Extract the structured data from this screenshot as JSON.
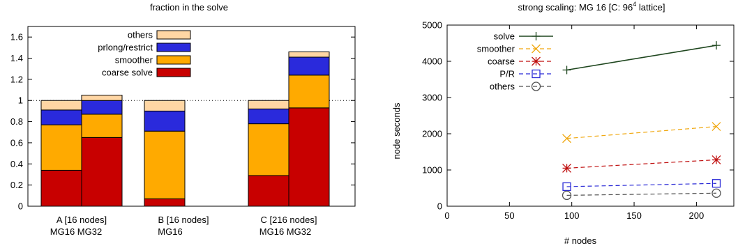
{
  "chart_data": [
    {
      "type": "bar",
      "subtype": "stacked",
      "title": "fraction in the solve",
      "xlabel": "",
      "ylabel": "",
      "ylim": [
        0,
        1.7
      ],
      "yticks": [
        "0",
        "0.2",
        "0.4",
        "0.6",
        "0.8",
        "1",
        "1.2",
        "1.4",
        "1.6"
      ],
      "reference_line": 1,
      "legend_position": "top-left",
      "stack_order": [
        "coarse solve",
        "smoother",
        "prlong/restrict",
        "others"
      ],
      "legend_order": [
        "others",
        "prlong/restrict",
        "smoother",
        "coarse solve"
      ],
      "colors": {
        "coarse solve": "#c80000",
        "smoother": "#ffaa00",
        "prlong/restrict": "#2a2adc",
        "others": "#ffd6a4"
      },
      "groups": [
        {
          "label": "A [16 nodes]",
          "bar_labels": "MG16 MG32"
        },
        {
          "label": "B [16 nodes]",
          "bar_labels": "MG16"
        },
        {
          "label": "C [216 nodes]",
          "bar_labels": "MG16 MG32"
        }
      ],
      "bars": [
        {
          "group": "A [16 nodes]",
          "name": "MG16",
          "values": {
            "coarse solve": 0.34,
            "smoother": 0.43,
            "prlong/restrict": 0.14,
            "others": 0.09
          }
        },
        {
          "group": "A [16 nodes]",
          "name": "MG32",
          "values": {
            "coarse solve": 0.65,
            "smoother": 0.22,
            "prlong/restrict": 0.13,
            "others": 0.05
          }
        },
        {
          "group": "B [16 nodes]",
          "name": "MG16",
          "values": {
            "coarse solve": 0.07,
            "smoother": 0.64,
            "prlong/restrict": 0.19,
            "others": 0.1
          }
        },
        {
          "group": "C [216 nodes]",
          "name": "MG16",
          "values": {
            "coarse solve": 0.29,
            "smoother": 0.49,
            "prlong/restrict": 0.14,
            "others": 0.08
          }
        },
        {
          "group": "C [216 nodes]",
          "name": "MG32",
          "values": {
            "coarse solve": 0.93,
            "smoother": 0.31,
            "prlong/restrict": 0.17,
            "others": 0.05
          }
        }
      ]
    },
    {
      "type": "line",
      "title": "strong scaling: MG 16 [C: 96",
      "title_superscript": "4",
      "title_suffix": " lattice]",
      "xlabel": "# nodes",
      "ylabel": "node seconds",
      "xlim": [
        0,
        230
      ],
      "ylim": [
        0,
        5000
      ],
      "xticks": [
        "0",
        "50",
        "100",
        "150",
        "200"
      ],
      "yticks": [
        "0",
        "1000",
        "2000",
        "3000",
        "4000",
        "5000"
      ],
      "legend_position": "top-left",
      "x": [
        96,
        216
      ],
      "series": [
        {
          "name": "solve",
          "values": [
            3760,
            4440
          ],
          "color": "#1e461e",
          "marker": "plus",
          "dashed": false
        },
        {
          "name": "smoother",
          "values": [
            1870,
            2200
          ],
          "color": "#f0a810",
          "marker": "x",
          "dashed": true
        },
        {
          "name": "coarse",
          "values": [
            1050,
            1280
          ],
          "color": "#c01010",
          "marker": "star",
          "dashed": true
        },
        {
          "name": "P/R",
          "values": [
            540,
            630
          ],
          "color": "#2a2ad6",
          "marker": "square",
          "dashed": true
        },
        {
          "name": "others",
          "values": [
            300,
            360
          ],
          "color": "#505050",
          "marker": "circle",
          "dashed": true
        }
      ]
    }
  ]
}
